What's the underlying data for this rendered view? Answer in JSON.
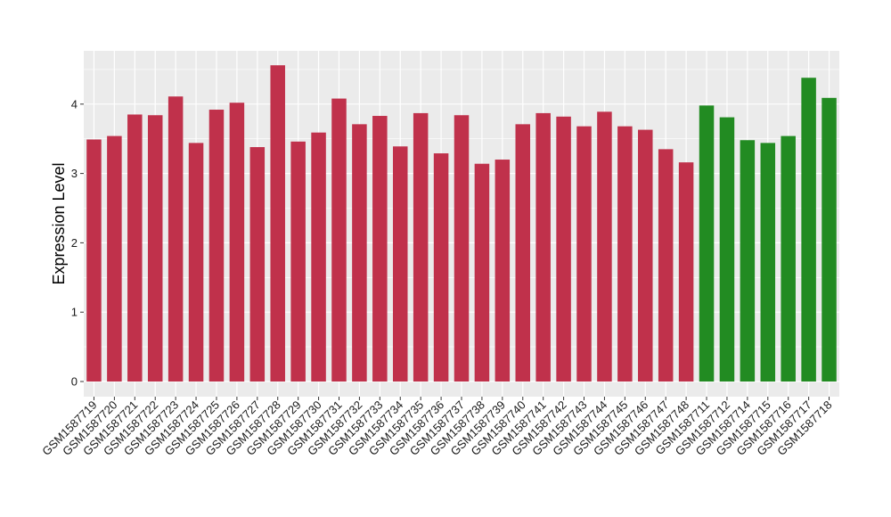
{
  "chart_data": {
    "type": "bar",
    "ylabel": "Expression Level",
    "xlabel": "",
    "ylim": [
      0,
      4.75
    ],
    "yticks": [
      0,
      1,
      2,
      3,
      4
    ],
    "grid": true,
    "colors": {
      "group_a": "#c0314b",
      "group_b": "#228b22",
      "panel": "#ebebeb",
      "gridline": "#ffffff"
    },
    "categories": [
      "GSM1587719",
      "GSM1587720",
      "GSM1587721",
      "GSM1587722",
      "GSM1587723",
      "GSM1587724",
      "GSM1587725",
      "GSM1587726",
      "GSM1587727",
      "GSM1587728",
      "GSM1587729",
      "GSM1587730",
      "GSM1587731",
      "GSM1587732",
      "GSM1587733",
      "GSM1587734",
      "GSM1587735",
      "GSM1587736",
      "GSM1587737",
      "GSM1587738",
      "GSM1587739",
      "GSM1587740",
      "GSM1587741",
      "GSM1587742",
      "GSM1587743",
      "GSM1587744",
      "GSM1587745",
      "GSM1587746",
      "GSM1587747",
      "GSM1587748",
      "GSM1587711",
      "GSM1587712",
      "GSM1587714",
      "GSM1587715",
      "GSM1587716",
      "GSM1587717",
      "GSM1587718"
    ],
    "values": [
      3.49,
      3.54,
      3.85,
      3.84,
      4.11,
      3.44,
      3.92,
      4.02,
      3.38,
      4.56,
      3.46,
      3.59,
      4.08,
      3.71,
      3.83,
      3.39,
      3.87,
      3.29,
      3.84,
      3.14,
      3.2,
      3.71,
      3.87,
      3.82,
      3.68,
      3.89,
      3.68,
      3.63,
      3.35,
      3.16,
      3.98,
      3.81,
      3.48,
      3.44,
      3.54,
      4.38,
      4.09
    ],
    "groups": [
      "a",
      "a",
      "a",
      "a",
      "a",
      "a",
      "a",
      "a",
      "a",
      "a",
      "a",
      "a",
      "a",
      "a",
      "a",
      "a",
      "a",
      "a",
      "a",
      "a",
      "a",
      "a",
      "a",
      "a",
      "a",
      "a",
      "a",
      "a",
      "a",
      "a",
      "b",
      "b",
      "b",
      "b",
      "b",
      "b",
      "b"
    ]
  }
}
